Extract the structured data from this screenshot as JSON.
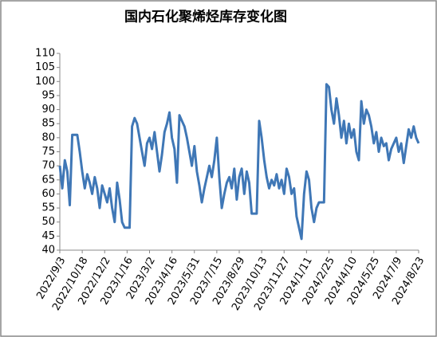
{
  "chart_data": {
    "type": "line",
    "title": "国内石化聚烯烃库存变化图",
    "categories": [
      "2022/9/3",
      null,
      null,
      null,
      null,
      null,
      null,
      null,
      null,
      "2022/10/18",
      null,
      null,
      null,
      null,
      null,
      null,
      null,
      null,
      "2022/12/2",
      null,
      null,
      null,
      null,
      null,
      null,
      null,
      null,
      "2023/1/16",
      null,
      null,
      null,
      null,
      null,
      null,
      null,
      null,
      "2023/3/2",
      null,
      null,
      null,
      null,
      null,
      null,
      null,
      null,
      "2023/4/16",
      null,
      null,
      null,
      null,
      null,
      null,
      null,
      null,
      "2023/5/31",
      null,
      null,
      null,
      null,
      null,
      null,
      null,
      null,
      "2023/7/15",
      null,
      null,
      null,
      null,
      null,
      null,
      null,
      null,
      "2023/8/29",
      null,
      null,
      null,
      null,
      null,
      null,
      null,
      null,
      "2023/10/13",
      null,
      null,
      null,
      null,
      null,
      null,
      null,
      null,
      "2023/11/27",
      null,
      null,
      null,
      null,
      null,
      null,
      null,
      null,
      "2024/1/11",
      null,
      null,
      null,
      null,
      null,
      null,
      null,
      null,
      "2024/2/25",
      null,
      null,
      null,
      null,
      null,
      null,
      null,
      null,
      "2024/4/10",
      null,
      null,
      null,
      null,
      null,
      null,
      null,
      null,
      "2024/5/25",
      null,
      null,
      null,
      null,
      null,
      null,
      null,
      null,
      "2024/7/9",
      null,
      null,
      null,
      null,
      null,
      null,
      null,
      null,
      "2024/8/23"
    ],
    "series": [
      {
        "color": "#3f77b6",
        "values": [
          70,
          62,
          72,
          68,
          56,
          81,
          81,
          81,
          75,
          68,
          62,
          67,
          64,
          60,
          66,
          62,
          55,
          63,
          60,
          57,
          62,
          55,
          50,
          64,
          58,
          50,
          48,
          48,
          48,
          84,
          87,
          85,
          80,
          75,
          70,
          78,
          80,
          76,
          82,
          75,
          68,
          74,
          82,
          85,
          89,
          80,
          76,
          64,
          88,
          86,
          84,
          80,
          75,
          70,
          77,
          68,
          63,
          57,
          62,
          66,
          70,
          66,
          72,
          80,
          66,
          55,
          60,
          64,
          66,
          62,
          69,
          58,
          66,
          69,
          60,
          68,
          64,
          53,
          53,
          53,
          86,
          80,
          72,
          66,
          62,
          65,
          63,
          67,
          62,
          65,
          60,
          69,
          66,
          60,
          62,
          52,
          48,
          44,
          60,
          68,
          65,
          55,
          50,
          55,
          57,
          57,
          57,
          99,
          98,
          90,
          85,
          94,
          88,
          80,
          86,
          78,
          85,
          80,
          83,
          75,
          72,
          93,
          85,
          90,
          88,
          84,
          78,
          82,
          75,
          80,
          77,
          78,
          72,
          76,
          78,
          80,
          75,
          78,
          71,
          77,
          83,
          80,
          84,
          80,
          78
        ]
      }
    ],
    "ylim": [
      40,
      110
    ],
    "yticks": [
      40,
      45,
      50,
      55,
      60,
      65,
      70,
      75,
      80,
      85,
      90,
      95,
      100,
      105,
      110
    ]
  }
}
